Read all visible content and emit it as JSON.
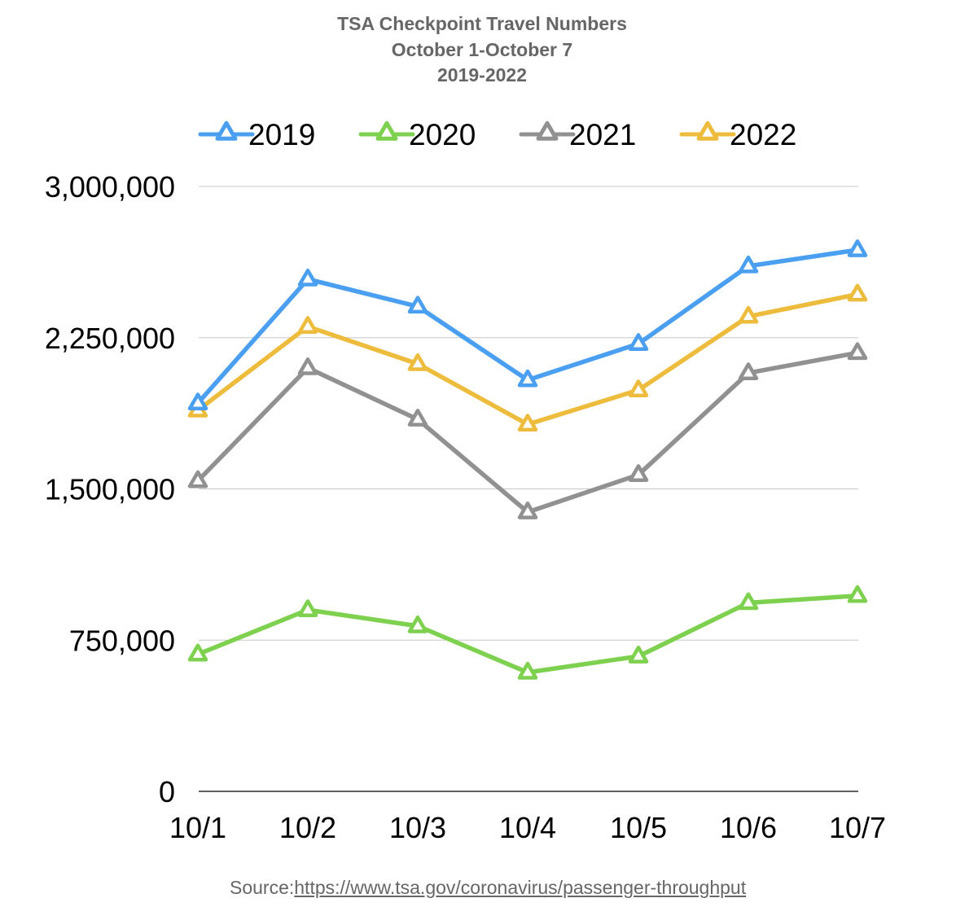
{
  "chart_data": {
    "type": "line",
    "title": [
      "TSA Checkpoint Travel Numbers",
      "October 1-October 7",
      "2019-2022"
    ],
    "categories": [
      "10/1",
      "10/2",
      "10/3",
      "10/4",
      "10/5",
      "10/6",
      "10/7"
    ],
    "ylim": [
      0,
      3000000
    ],
    "yticks": [
      0,
      750000,
      1500000,
      2250000,
      3000000
    ],
    "ytick_labels": [
      "0",
      "750,000",
      "1,500,000",
      "2,250,000",
      "3,000,000"
    ],
    "grid": true,
    "legend_position": "top",
    "marker": "triangle",
    "series": [
      {
        "name": "2019",
        "color": "#4a9ff0",
        "values": [
          1925000,
          2540000,
          2405000,
          2040000,
          2220000,
          2605000,
          2685000
        ]
      },
      {
        "name": "2020",
        "color": "#7ed04f",
        "values": [
          680000,
          900000,
          820000,
          590000,
          670000,
          935000,
          970000
        ]
      },
      {
        "name": "2021",
        "color": "#919191",
        "values": [
          1540000,
          2100000,
          1845000,
          1385000,
          1570000,
          2075000,
          2175000
        ]
      },
      {
        "name": "2022",
        "color": "#eebc3c",
        "values": [
          1890000,
          2305000,
          2120000,
          1820000,
          1990000,
          2355000,
          2465000
        ]
      }
    ]
  },
  "source": {
    "prefix": "Source:",
    "link": "https://www.tsa.gov/coronavirus/passenger-throughput"
  }
}
